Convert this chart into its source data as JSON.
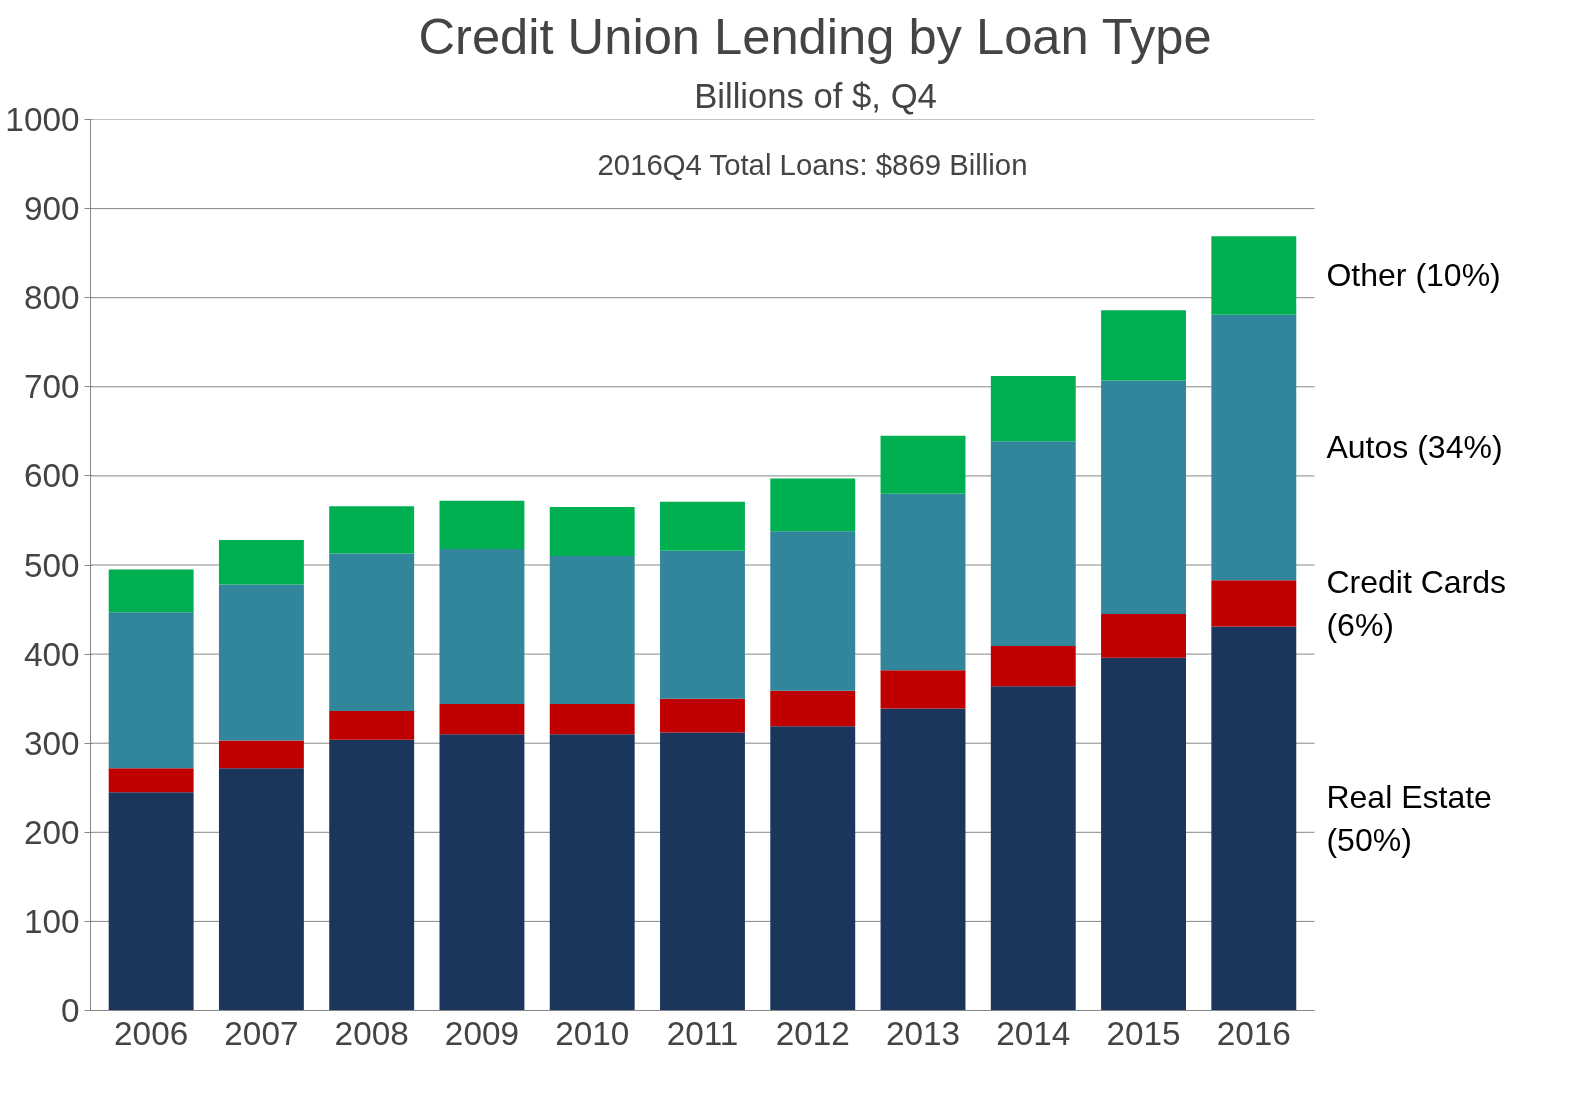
{
  "chart_data": {
    "type": "bar",
    "title": "Credit Union Lending by Loan Type",
    "subtitle": "Billions of $, Q4",
    "categories": [
      "2006",
      "2007",
      "2008",
      "2009",
      "2010",
      "2011",
      "2012",
      "2013",
      "2014",
      "2015",
      "2016"
    ],
    "stacked": true,
    "series": [
      {
        "name": "Real Estate (50%)",
        "color": "#1b365d",
        "values": [
          245,
          272,
          304,
          310,
          310,
          312,
          319,
          339,
          364,
          396,
          431
        ]
      },
      {
        "name": "Credit Cards (6%)",
        "color": "#c00000",
        "values": [
          27,
          31,
          32,
          34,
          34,
          38,
          40,
          43,
          45,
          49,
          52
        ]
      },
      {
        "name": "Autos (34%)",
        "color": "#31869b",
        "values": [
          175,
          175,
          177,
          174,
          166,
          166,
          179,
          198,
          230,
          262,
          298
        ]
      },
      {
        "name": "Other (10%)",
        "color": "#00b050",
        "values": [
          48,
          50,
          53,
          54,
          55,
          55,
          59,
          65,
          73,
          79,
          88
        ]
      }
    ],
    "ylim": [
      0,
      1000
    ],
    "yticks": [
      0,
      100,
      200,
      300,
      400,
      500,
      600,
      700,
      800,
      900,
      1000
    ],
    "grid": "y",
    "annotations": [
      "2016Q4 Total Loans: $869 Billion"
    ]
  }
}
